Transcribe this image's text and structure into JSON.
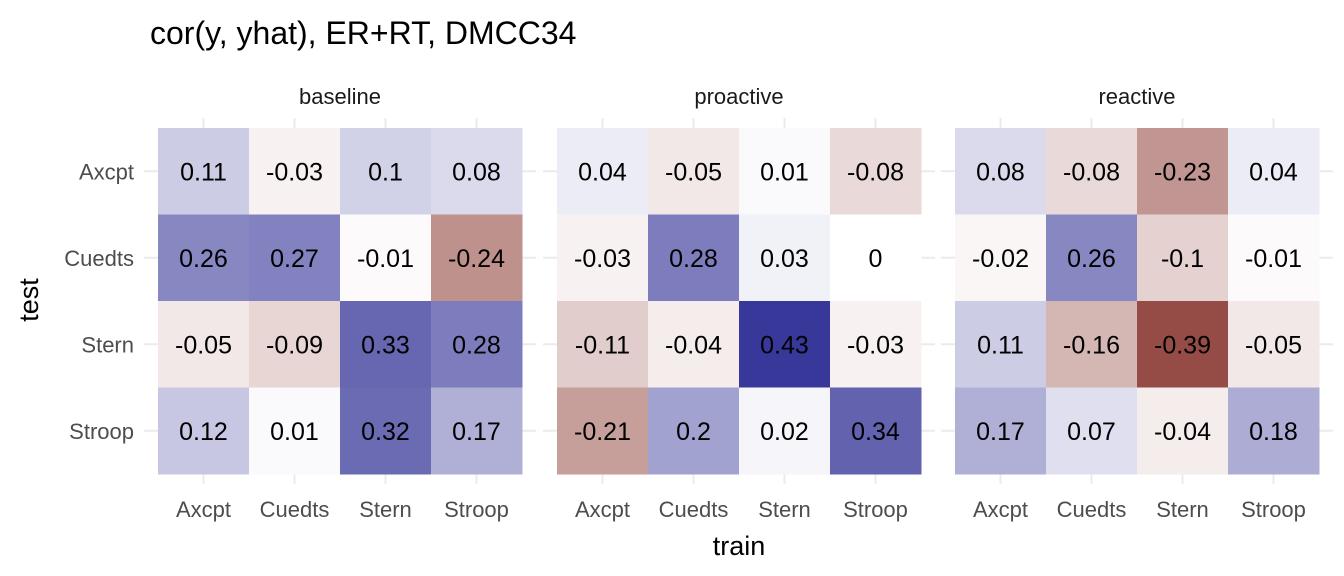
{
  "chart_data": {
    "type": "heatmap",
    "title": "cor(y, yhat), ER+RT, DMCC34",
    "xlabel": "train",
    "ylabel": "test",
    "x_categories": [
      "Axcpt",
      "Cuedts",
      "Stern",
      "Stroop"
    ],
    "y_categories": [
      "Axcpt",
      "Cuedts",
      "Stern",
      "Stroop"
    ],
    "panels": [
      {
        "name": "baseline",
        "values": [
          [
            0.11,
            -0.03,
            0.1,
            0.08
          ],
          [
            0.26,
            0.27,
            -0.01,
            -0.24
          ],
          [
            -0.05,
            -0.09,
            0.33,
            0.28
          ],
          [
            0.12,
            0.01,
            0.32,
            0.17
          ]
        ]
      },
      {
        "name": "proactive",
        "values": [
          [
            0.04,
            -0.05,
            0.01,
            -0.08
          ],
          [
            -0.03,
            0.28,
            0.03,
            0
          ],
          [
            -0.11,
            -0.04,
            0.43,
            -0.03
          ],
          [
            -0.21,
            0.2,
            0.02,
            0.34
          ]
        ]
      },
      {
        "name": "reactive",
        "values": [
          [
            0.08,
            -0.08,
            -0.23,
            0.04
          ],
          [
            -0.02,
            0.26,
            -0.1,
            -0.01
          ],
          [
            0.11,
            -0.16,
            -0.39,
            -0.05
          ],
          [
            0.17,
            0.07,
            -0.04,
            0.18
          ]
        ]
      }
    ],
    "color_scale": {
      "low": "#8B3A33",
      "mid": "#FFFFFF",
      "high": "#38389A",
      "limits": [
        -0.43,
        0.43
      ]
    }
  }
}
